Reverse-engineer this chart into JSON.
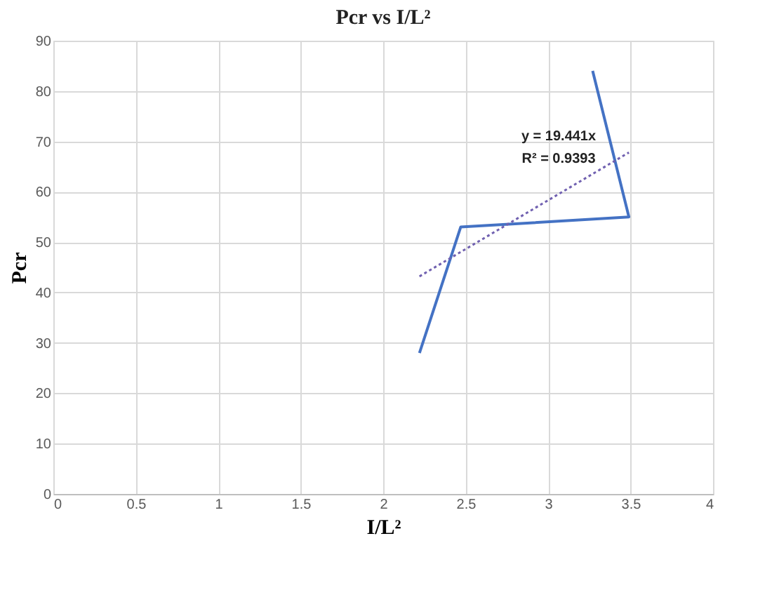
{
  "chart_data": {
    "type": "line",
    "title": "Pcr vs I/L²",
    "xlabel": "I/L²",
    "ylabel": "Pcr",
    "xlim": [
      0,
      4
    ],
    "xticks": [
      0,
      0.5,
      1,
      1.5,
      2,
      2.5,
      3,
      3.5,
      4
    ],
    "ylim": [
      0,
      90
    ],
    "yticks": [
      0,
      10,
      20,
      30,
      40,
      50,
      60,
      70,
      80,
      90
    ],
    "grid": true,
    "marker": "none",
    "series": [
      {
        "color": "#4472c4",
        "x": [
          2.22,
          2.47,
          3.49,
          3.27
        ],
        "values": [
          28,
          53,
          55,
          84
        ],
        "line_style": "solid"
      },
      {
        "type": "line",
        "color": "#7060b0",
        "x": [
          2.22,
          3.49
        ],
        "values": [
          43.2,
          67.8
        ],
        "line_style": "dotted"
      }
    ],
    "annotations": [
      "y = 19.441x",
      "R² = 0.9393"
    ]
  }
}
